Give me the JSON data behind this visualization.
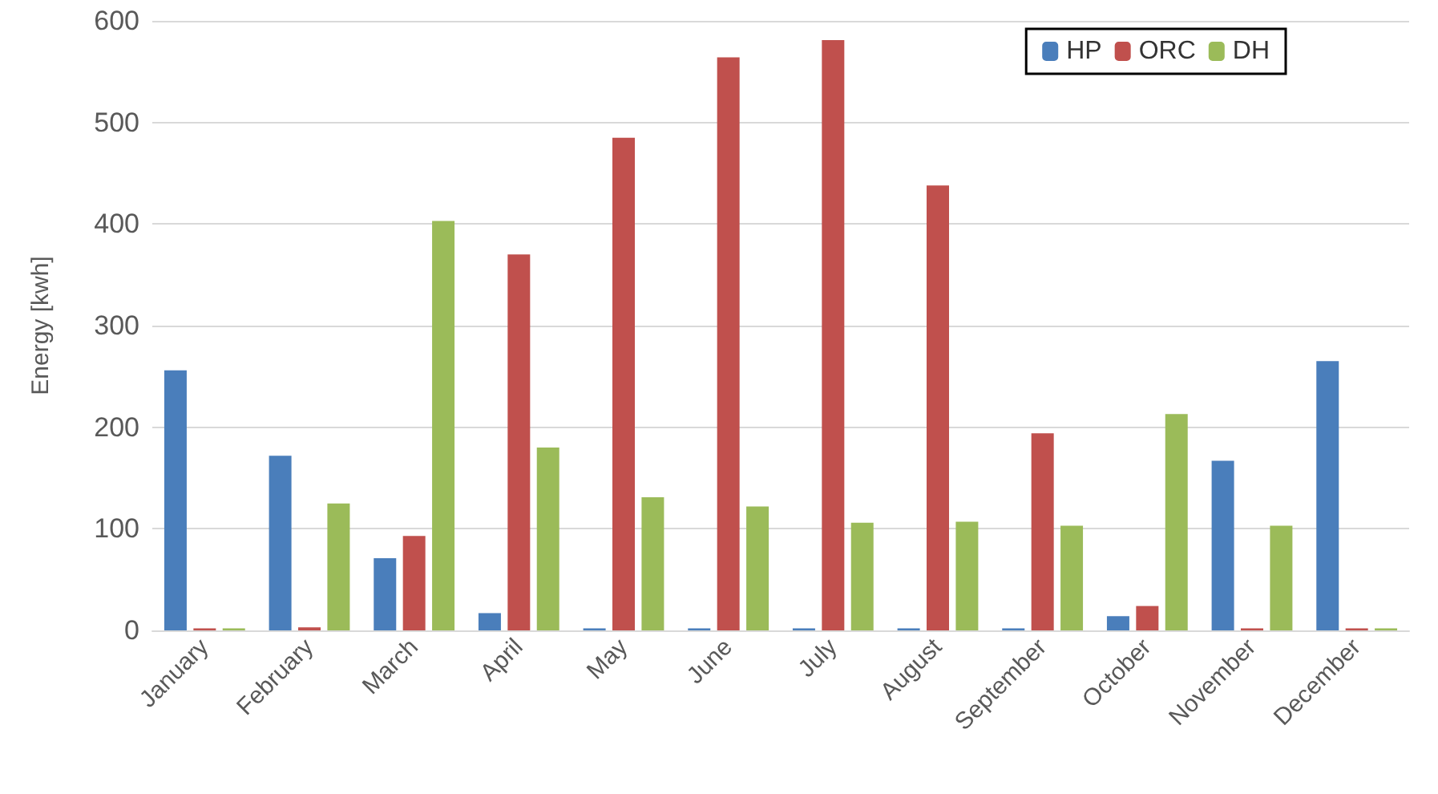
{
  "chart_data": {
    "type": "bar",
    "ylabel": "Energy [kwh]",
    "categories": [
      "January",
      "February",
      "March",
      "April",
      "May",
      "June",
      "July",
      "August",
      "September",
      "October",
      "November",
      "December"
    ],
    "series": [
      {
        "name": "HP",
        "color": "#4a7ebb",
        "values": [
          256,
          172,
          71,
          17,
          2,
          2,
          2,
          2,
          2,
          14,
          167,
          265
        ]
      },
      {
        "name": "ORC",
        "color": "#c0504d",
        "values": [
          2,
          3,
          93,
          370,
          485,
          564,
          581,
          438,
          194,
          24,
          2,
          2
        ]
      },
      {
        "name": "DH",
        "color": "#9bbb59",
        "values": [
          2,
          125,
          403,
          180,
          131,
          122,
          106,
          107,
          103,
          213,
          103,
          2
        ]
      }
    ],
    "ylim": [
      0,
      600
    ],
    "yticks": [
      0,
      100,
      200,
      300,
      400,
      500,
      600
    ],
    "grid": "y",
    "legend": "top right"
  }
}
